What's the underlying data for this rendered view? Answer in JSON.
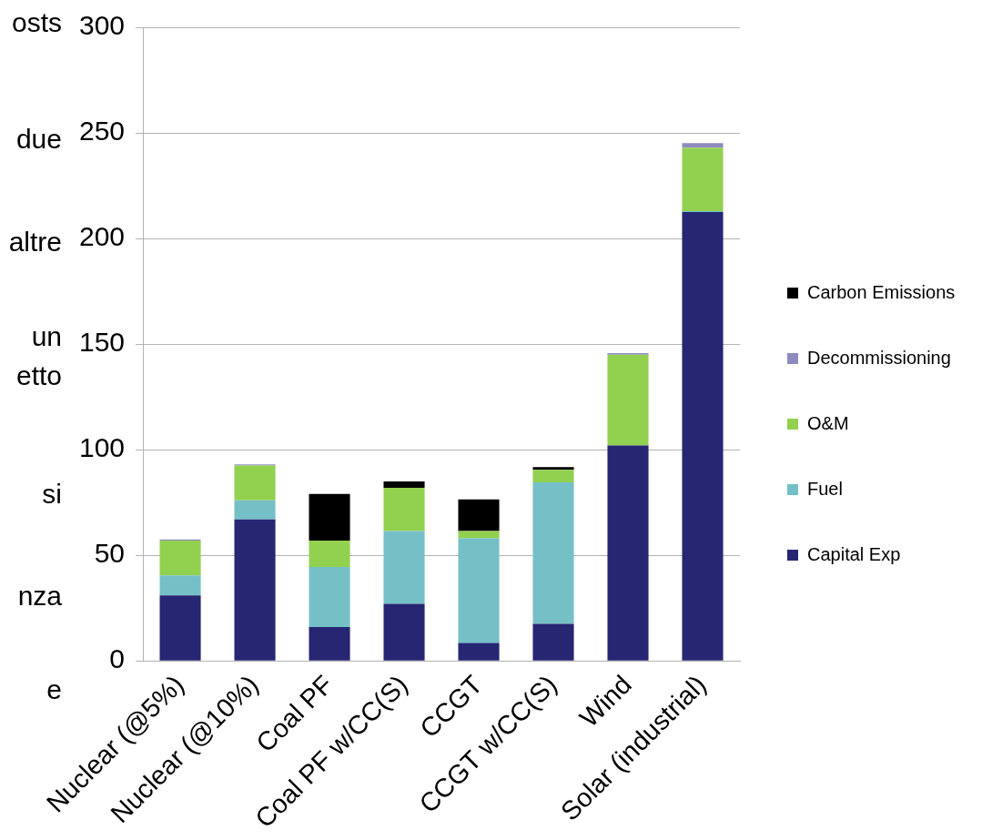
{
  "chart_data": {
    "type": "bar",
    "stacked": true,
    "categories": [
      "Nuclear (@5%)",
      "Nuclear (@10%)",
      "Coal PF",
      "Coal PF w/CC(S)",
      "CCGT",
      "CCGT w/CC(S)",
      "Wind",
      "Solar (industrial)"
    ],
    "series": [
      {
        "name": "Capital Exp",
        "color": "#262673",
        "values": [
          31,
          67,
          16,
          27,
          8.5,
          17.5,
          102,
          212.5
        ]
      },
      {
        "name": "Fuel",
        "color": "#75c0c6",
        "values": [
          9.5,
          9,
          28.5,
          34.5,
          49.5,
          67,
          0,
          0.5
        ]
      },
      {
        "name": "O&M",
        "color": "#92d050",
        "values": [
          16.5,
          16.5,
          12.5,
          20.5,
          3.5,
          6,
          43,
          30
        ]
      },
      {
        "name": "Decommissioning",
        "color": "#8e8cbf",
        "values": [
          0.5,
          0.5,
          0,
          0,
          0,
          0,
          0.7,
          2.2
        ]
      },
      {
        "name": "Carbon Emissions",
        "color": "#000000",
        "values": [
          0,
          0,
          22,
          3,
          15,
          1.3,
          0,
          0
        ]
      }
    ],
    "ylim": [
      0,
      300
    ],
    "yticks": [
      0,
      50,
      100,
      150,
      200,
      250,
      300
    ],
    "grid": "y",
    "legend": "right",
    "annotations": [
      "osts",
      "due",
      "altre",
      "un",
      "etto",
      "si",
      "nza",
      "e"
    ]
  }
}
